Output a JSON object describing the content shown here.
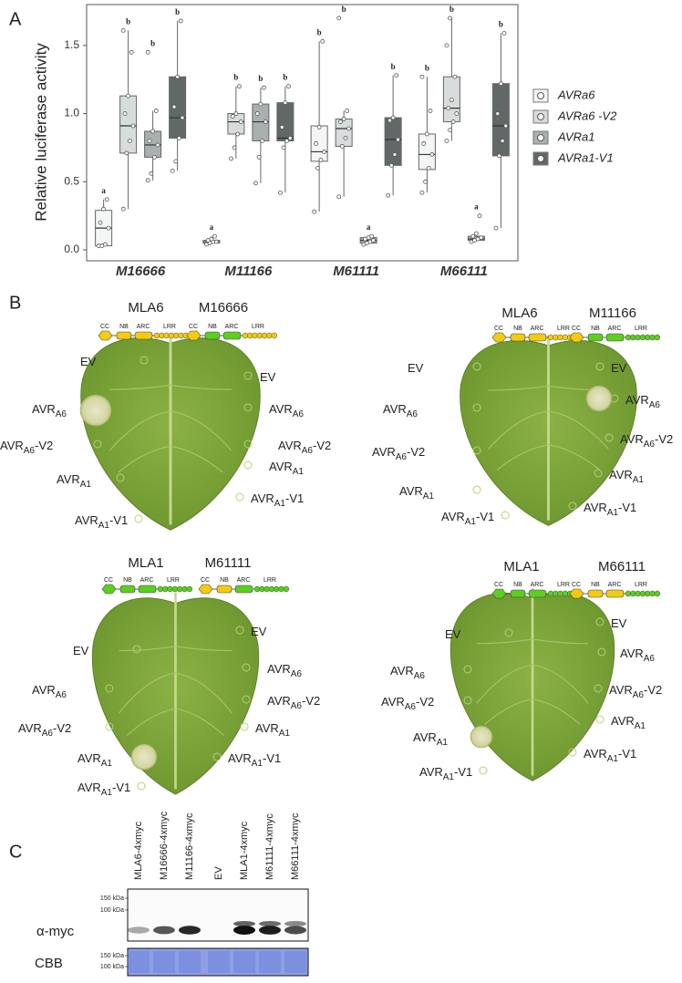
{
  "panel_labels": [
    "A",
    "B",
    "C"
  ],
  "chart_data": {
    "type": "box",
    "ylabel": "Relative luciferase activity",
    "categories": [
      "M16666",
      "M11166",
      "M61111",
      "M66111"
    ],
    "ylim": [
      -0.08,
      1.8
    ],
    "yticks": [
      {
        "value": 0,
        "label": "0.0"
      },
      0.5,
      {
        "value": 1,
        "label": "1.0"
      },
      1.5
    ],
    "legend": "right",
    "series": [
      {
        "name": "AVRa6",
        "color": "#f4f5f5",
        "min": [
          0.03,
          0.04,
          0.28,
          0.42
        ],
        "q1": [
          0.03,
          0.05,
          0.65,
          0.59
        ],
        "median": [
          0.16,
          0.06,
          0.72,
          0.7
        ],
        "q3": [
          0.29,
          0.07,
          0.91,
          0.85
        ],
        "max": [
          0.37,
          0.1,
          1.53,
          1.27
        ],
        "points": [
          [
            0.03,
            0.03,
            0.04,
            0.16,
            0.2,
            0.3,
            0.37
          ],
          [
            0.04,
            0.05,
            0.06,
            0.06,
            0.07,
            0.08,
            0.1
          ],
          [
            0.28,
            0.6,
            0.66,
            0.72,
            0.78,
            0.9,
            1.53
          ],
          [
            0.42,
            0.5,
            0.6,
            0.7,
            0.78,
            0.85,
            1.02,
            1.27
          ]
        ],
        "letters": [
          "a",
          "a",
          "b",
          "b"
        ]
      },
      {
        "name": "AVRa6 -V2",
        "color": "#d8dcdc",
        "min": [
          0.3,
          0.67,
          0.39,
          0.8
        ],
        "q1": [
          0.71,
          0.85,
          0.76,
          0.94
        ],
        "median": [
          0.91,
          0.94,
          0.89,
          1.04
        ],
        "q3": [
          1.13,
          1.0,
          0.96,
          1.27
        ],
        "max": [
          1.61,
          1.2,
          1.02,
          1.7
        ],
        "points": [
          [
            0.3,
            0.71,
            0.8,
            0.91,
            1.0,
            1.13,
            1.45,
            1.61
          ],
          [
            0.67,
            0.75,
            0.85,
            0.94,
            0.98,
            1.0,
            1.2
          ],
          [
            0.39,
            0.76,
            0.82,
            0.89,
            0.94,
            0.96,
            1.02,
            1.7
          ],
          [
            0.8,
            0.88,
            0.94,
            1.0,
            1.04,
            1.1,
            1.27,
            1.5,
            1.7
          ]
        ],
        "letters": [
          "b",
          "b",
          "b",
          "b"
        ]
      },
      {
        "name": "AVRa1",
        "color": "#a9b0b0",
        "min": [
          0.51,
          0.49,
          0.04,
          0.06
        ],
        "q1": [
          0.68,
          0.8,
          0.05,
          0.07
        ],
        "median": [
          0.77,
          0.94,
          0.07,
          0.08
        ],
        "q3": [
          0.87,
          1.07,
          0.09,
          0.1
        ],
        "max": [
          1.02,
          1.19,
          0.1,
          0.12
        ],
        "points": [
          [
            0.51,
            0.56,
            0.68,
            0.77,
            0.8,
            0.87,
            1.02,
            1.45
          ],
          [
            0.49,
            0.68,
            0.8,
            0.94,
            1.0,
            1.07,
            1.19
          ],
          [
            0.04,
            0.05,
            0.06,
            0.07,
            0.08,
            0.09,
            0.1
          ],
          [
            0.06,
            0.07,
            0.08,
            0.09,
            0.1,
            0.12,
            0.25
          ]
        ],
        "letters": [
          "b",
          "b",
          "a",
          "a"
        ]
      },
      {
        "name": "AVRa1-V1",
        "color": "#626868",
        "min": [
          0.58,
          0.42,
          0.4,
          0.16
        ],
        "q1": [
          0.82,
          0.8,
          0.62,
          0.69
        ],
        "median": [
          0.97,
          0.82,
          0.81,
          0.91
        ],
        "q3": [
          1.27,
          1.08,
          0.97,
          1.22
        ],
        "max": [
          1.68,
          1.2,
          1.28,
          1.59
        ],
        "points": [
          [
            0.58,
            0.65,
            0.82,
            0.97,
            1.05,
            1.27,
            1.68
          ],
          [
            0.42,
            0.75,
            0.8,
            0.82,
            0.9,
            1.08,
            1.2
          ],
          [
            0.4,
            0.62,
            0.7,
            0.81,
            0.95,
            0.97,
            1.28
          ],
          [
            0.16,
            0.69,
            0.8,
            0.91,
            1.0,
            1.22,
            1.59
          ]
        ],
        "letters": [
          "b",
          "b",
          "b",
          "b"
        ]
      }
    ]
  },
  "domain_labels": [
    "CC",
    "NB",
    "ARC",
    "LRR"
  ],
  "infiltrations": [
    {
      "base": "EV"
    },
    {
      "base": "AVR",
      "sub": "A6"
    },
    {
      "base": "AVR",
      "sub": "A6",
      "suffix": "-V2"
    },
    {
      "base": "AVR",
      "sub": "A1"
    },
    {
      "base": "AVR",
      "sub": "A1",
      "suffix": "-V1"
    }
  ],
  "leaves": [
    {
      "constructs": [
        {
          "name": "MLA6",
          "domain_colors": [
            "#f3cb10",
            "#f3cb10",
            "#f3cb10",
            "#f3cb10",
            "#f3cb10"
          ]
        },
        {
          "name": "M16666",
          "domain_colors": [
            "#f3cb10",
            "#5ccf1f",
            "#5ccf1f",
            "#f3cb10",
            "#f3cb10"
          ]
        }
      ]
    },
    {
      "constructs": [
        {
          "name": "MLA6",
          "domain_colors": [
            "#f3cb10",
            "#f3cb10",
            "#f3cb10",
            "#f3cb10",
            "#f3cb10"
          ]
        },
        {
          "name": "M11166",
          "domain_colors": [
            "#f3cb10",
            "#5ccf1f",
            "#5ccf1f",
            "#5ccf1f",
            "#5ccf1f"
          ]
        }
      ]
    },
    {
      "constructs": [
        {
          "name": "MLA1",
          "domain_colors": [
            "#5ccf1f",
            "#5ccf1f",
            "#5ccf1f",
            "#5ccf1f",
            "#5ccf1f"
          ]
        },
        {
          "name": "M61111",
          "domain_colors": [
            "#f3cb10",
            "#f3cb10",
            "#5ccf1f",
            "#5ccf1f",
            "#5ccf1f"
          ]
        }
      ]
    },
    {
      "constructs": [
        {
          "name": "MLA1",
          "domain_colors": [
            "#5ccf1f",
            "#5ccf1f",
            "#5ccf1f",
            "#5ccf1f",
            "#5ccf1f"
          ]
        },
        {
          "name": "M66111",
          "domain_colors": [
            "#f3cb10",
            "#f3cb10",
            "#f3cb10",
            "#5ccf1f",
            "#5ccf1f"
          ]
        }
      ]
    }
  ],
  "blot": {
    "lanes": [
      "MLA6-4xmyc",
      "M16666-4xmyc",
      "M11166-4xmyc",
      "EV",
      "MLA1-4xmyc",
      "M61111-4xmyc",
      "M66111-4xmyc"
    ],
    "rows": [
      {
        "label": "α-myc",
        "markers": [
          "150 kDa",
          "100 kDa"
        ]
      },
      {
        "label": "CBB",
        "markers": [
          "150 kDa",
          "100 kDa"
        ]
      }
    ]
  }
}
